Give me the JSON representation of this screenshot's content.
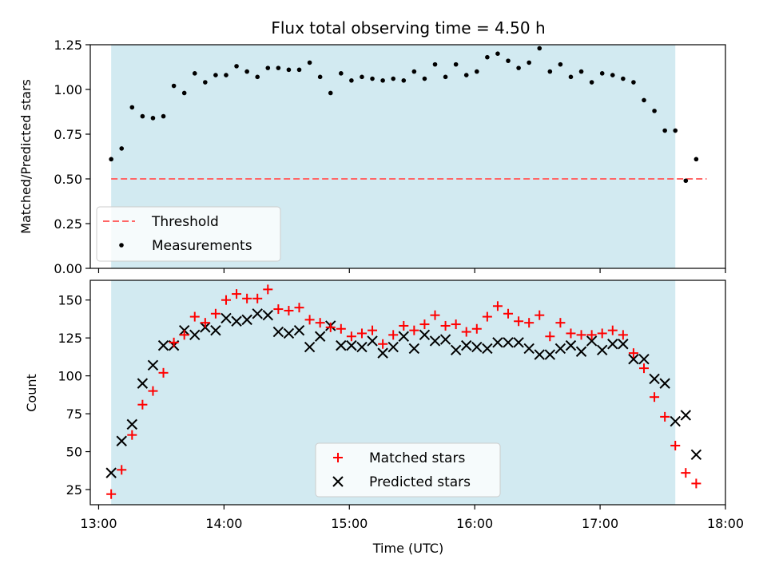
{
  "figure": {
    "title": "Flux total observing time = 4.50 h",
    "xlabel": "Time (UTC)"
  },
  "colors": {
    "span": "#add8e6",
    "threshold": "#ff6666",
    "measurement": "#000000",
    "matched": "#ff0000",
    "predicted": "#000000"
  },
  "chart_data": [
    {
      "type": "scatter",
      "ylabel": "Matched/Predicted stars",
      "xlim": [
        "12:56",
        "18:00"
      ],
      "ylim": [
        0,
        1.25
      ],
      "yticks": [
        0,
        0.25,
        0.5,
        0.75,
        1.0,
        1.25
      ],
      "ytick_labels": [
        "0.00",
        "0.25",
        "0.50",
        "0.75",
        "1.00",
        "1.25"
      ],
      "xticks": [
        "13:00",
        "14:00",
        "15:00",
        "16:00",
        "17:00",
        "18:00"
      ],
      "shaded_span": [
        "13:06",
        "17:36"
      ],
      "threshold": {
        "name": "Threshold",
        "y": 0.5,
        "x": [
          "13:06",
          "17:51"
        ]
      },
      "legend": "lower-left",
      "series": [
        {
          "name": "Measurements",
          "x": [
            "13:06",
            "13:11",
            "13:16",
            "13:21",
            "13:26",
            "13:31",
            "13:36",
            "13:41",
            "13:46",
            "13:51",
            "13:56",
            "14:01",
            "14:06",
            "14:11",
            "14:16",
            "14:21",
            "14:26",
            "14:31",
            "14:36",
            "14:41",
            "14:46",
            "14:51",
            "14:56",
            "15:01",
            "15:06",
            "15:11",
            "15:16",
            "15:21",
            "15:26",
            "15:31",
            "15:36",
            "15:41",
            "15:46",
            "15:51",
            "15:56",
            "16:01",
            "16:06",
            "16:11",
            "16:16",
            "16:21",
            "16:26",
            "16:31",
            "16:36",
            "16:41",
            "16:46",
            "16:51",
            "16:56",
            "17:01",
            "17:06",
            "17:11",
            "17:16",
            "17:21",
            "17:26",
            "17:31",
            "17:36",
            "17:41",
            "17:46"
          ],
          "y": [
            0.61,
            0.67,
            0.9,
            0.85,
            0.84,
            0.85,
            1.02,
            0.98,
            1.09,
            1.04,
            1.08,
            1.08,
            1.13,
            1.1,
            1.07,
            1.12,
            1.12,
            1.11,
            1.11,
            1.15,
            1.07,
            0.98,
            1.09,
            1.05,
            1.07,
            1.06,
            1.05,
            1.06,
            1.05,
            1.1,
            1.06,
            1.14,
            1.07,
            1.14,
            1.08,
            1.1,
            1.18,
            1.2,
            1.16,
            1.12,
            1.15,
            1.23,
            1.1,
            1.14,
            1.07,
            1.1,
            1.04,
            1.09,
            1.08,
            1.06,
            1.04,
            0.94,
            0.88,
            0.77,
            0.77,
            0.49,
            0.61
          ]
        }
      ]
    },
    {
      "type": "scatter",
      "ylabel": "Count",
      "xlim": [
        "12:56",
        "18:00"
      ],
      "ylim": [
        15,
        163
      ],
      "yticks": [
        25,
        50,
        75,
        100,
        125,
        150
      ],
      "ytick_labels": [
        "25",
        "50",
        "75",
        "100",
        "125",
        "150"
      ],
      "xticks": [
        "13:00",
        "14:00",
        "15:00",
        "16:00",
        "17:00",
        "18:00"
      ],
      "xtick_labels": [
        "13:00",
        "14:00",
        "15:00",
        "16:00",
        "17:00",
        "18:00"
      ],
      "shaded_span": [
        "13:06",
        "17:36"
      ],
      "legend": "lower-center",
      "x": [
        "13:06",
        "13:11",
        "13:16",
        "13:21",
        "13:26",
        "13:31",
        "13:36",
        "13:41",
        "13:46",
        "13:51",
        "13:56",
        "14:01",
        "14:06",
        "14:11",
        "14:16",
        "14:21",
        "14:26",
        "14:31",
        "14:36",
        "14:41",
        "14:46",
        "14:51",
        "14:56",
        "15:01",
        "15:06",
        "15:11",
        "15:16",
        "15:21",
        "15:26",
        "15:31",
        "15:36",
        "15:41",
        "15:46",
        "15:51",
        "15:56",
        "16:01",
        "16:06",
        "16:11",
        "16:16",
        "16:21",
        "16:26",
        "16:31",
        "16:36",
        "16:41",
        "16:46",
        "16:51",
        "16:56",
        "17:01",
        "17:06",
        "17:11",
        "17:16",
        "17:21",
        "17:26",
        "17:31",
        "17:36",
        "17:41",
        "17:46"
      ],
      "series": [
        {
          "name": "Matched stars",
          "marker": "plus",
          "values": [
            22,
            38,
            61,
            81,
            90,
            102,
            122,
            127,
            139,
            135,
            141,
            150,
            154,
            151,
            151,
            157,
            144,
            143,
            145,
            137,
            135,
            132,
            131,
            126,
            128,
            130,
            121,
            127,
            133,
            130,
            134,
            140,
            133,
            134,
            129,
            131,
            139,
            146,
            141,
            136,
            135,
            140,
            126,
            135,
            128,
            127,
            127,
            128,
            130,
            127,
            115,
            105,
            86,
            73,
            54,
            36,
            29
          ]
        },
        {
          "name": "Predicted stars",
          "marker": "x",
          "values": [
            36,
            57,
            68,
            95,
            107,
            120,
            120,
            130,
            127,
            132,
            130,
            138,
            136,
            137,
            141,
            140,
            129,
            128,
            130,
            119,
            126,
            133,
            120,
            120,
            119,
            123,
            115,
            119,
            126,
            118,
            127,
            123,
            124,
            117,
            120,
            119,
            118,
            122,
            122,
            122,
            118,
            114,
            114,
            118,
            120,
            116,
            123,
            117,
            121,
            121,
            111,
            111,
            98,
            95,
            70,
            74,
            48
          ]
        }
      ]
    }
  ]
}
